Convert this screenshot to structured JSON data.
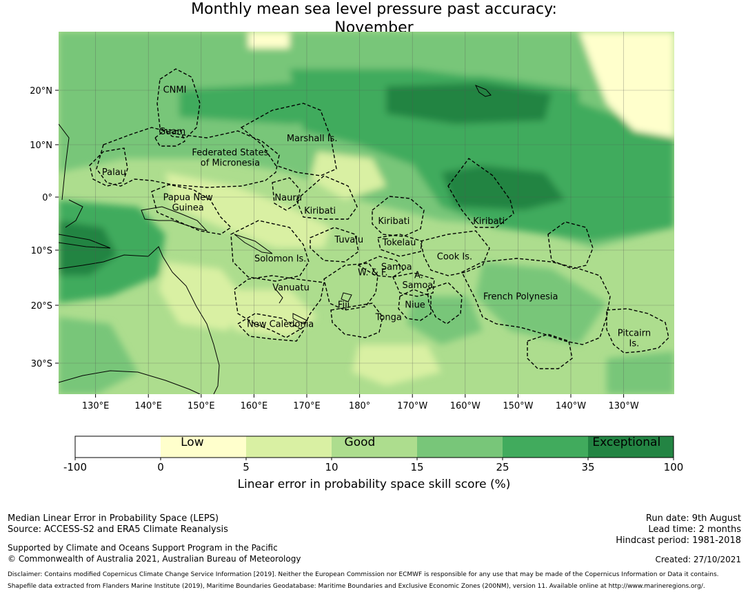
{
  "title_line1": "Monthly mean sea level pressure past accuracy:",
  "title_line2": "November",
  "map": {
    "lon_ticks": [
      "130°E",
      "140°E",
      "150°E",
      "160°E",
      "170°E",
      "180°",
      "170°W",
      "160°W",
      "150°W",
      "140°W",
      "130°W"
    ],
    "lat_ticks": [
      "20°N",
      "10°N",
      "0°",
      "10°S",
      "20°S",
      "30°S"
    ],
    "regions": [
      {
        "lines": [
          "CNMI"
        ],
        "lon": 145,
        "lat": 20.2
      },
      {
        "lines": [
          "Guam"
        ],
        "lon": 144.5,
        "lat": 12.4
      },
      {
        "lines": [
          "Marshall Is."
        ],
        "lon": 171,
        "lat": 11.1
      },
      {
        "lines": [
          "Federated States",
          "of Micronesia"
        ],
        "lon": 155.5,
        "lat": 7.5
      },
      {
        "lines": [
          "Palau"
        ],
        "lon": 133.5,
        "lat": 4.8
      },
      {
        "lines": [
          "Papua New",
          "Guinea"
        ],
        "lon": 147.5,
        "lat": -0.9
      },
      {
        "lines": [
          "Nauru"
        ],
        "lon": 166.5,
        "lat": 0
      },
      {
        "lines": [
          "Kiribati"
        ],
        "lon": 172.5,
        "lat": -2.4
      },
      {
        "lines": [
          "Kiribati"
        ],
        "lon": 186.5,
        "lat": -4.3
      },
      {
        "lines": [
          "Kiribati"
        ],
        "lon": 204.5,
        "lat": -4.3
      },
      {
        "lines": [
          "Tuvalu"
        ],
        "lon": 178,
        "lat": -7.8
      },
      {
        "lines": [
          "Tokelau"
        ],
        "lon": 187.5,
        "lat": -8.3
      },
      {
        "lines": [
          "Solomon Is."
        ],
        "lon": 165,
        "lat": -11.3
      },
      {
        "lines": [
          "Cook Is."
        ],
        "lon": 198,
        "lat": -10.9
      },
      {
        "lines": [
          "Samoa"
        ],
        "lon": 187,
        "lat": -12.8
      },
      {
        "lines": [
          "W. & F."
        ],
        "lon": 182.5,
        "lat": -13.8
      },
      {
        "lines": [
          "A."
        ],
        "lon": 191.2,
        "lat": -14.3
      },
      {
        "lines": [
          "Samoa"
        ],
        "lon": 191,
        "lat": -16.2
      },
      {
        "lines": [
          "Vanuatu"
        ],
        "lon": 167,
        "lat": -16.6
      },
      {
        "lines": [
          "French Polynesia"
        ],
        "lon": 210.5,
        "lat": -18.3
      },
      {
        "lines": [
          "Fiji"
        ],
        "lon": 177,
        "lat": -19.8
      },
      {
        "lines": [
          "Niue"
        ],
        "lon": 190.5,
        "lat": -19.8
      },
      {
        "lines": [
          "Tonga"
        ],
        "lon": 185.5,
        "lat": -22.1
      },
      {
        "lines": [
          "New Caledonia"
        ],
        "lon": 165,
        "lat": -23.4
      },
      {
        "lines": [
          "Pitcairn",
          "Is."
        ],
        "lon": 232,
        "lat": -26
      }
    ]
  },
  "colorbar": {
    "bins": [
      {
        "from": "-100",
        "to": "0",
        "color": "#ffffff"
      },
      {
        "from": "0",
        "to": "5",
        "color": "#ffffcc"
      },
      {
        "from": "5",
        "to": "10",
        "color": "#d9f0a3"
      },
      {
        "from": "10",
        "to": "15",
        "color": "#addd8e"
      },
      {
        "from": "15",
        "to": "25",
        "color": "#78c679"
      },
      {
        "from": "25",
        "to": "35",
        "color": "#41ab5d"
      },
      {
        "from": "35",
        "to": "100",
        "color": "#238443"
      }
    ],
    "boundary_labels": [
      "-100",
      "0",
      "5",
      "10",
      "15",
      "25",
      "35",
      "100"
    ],
    "category_labels": [
      "Low",
      "Good",
      "Exceptional"
    ],
    "title": "Linear error in probability space skill score (%)"
  },
  "footer": {
    "left_line1": "Median Linear Error in Probability Space (LEPS)",
    "left_line2": "Source: ACCESS-S2 and ERA5 Climate Reanalysis",
    "support_line": "Supported by Climate and Oceans Support Program in the Pacific",
    "copyright_line": "© Commonwealth of Australia 2021, Australian Bureau of Meteorology",
    "run_date": "Run date: 9th August",
    "lead_time": "Lead time: 2 months",
    "hindcast": "Hindcast period: 1981-2018",
    "created": "Created: 27/10/2021",
    "disclaimer1": "Disclaimer: Contains modified Copernicus Climate Change Service Information [2019]. Neither the European Commission nor ECMWF is responsible for any use that may be made of the Copernicus Information or Data it contains.",
    "disclaimer2": "Shapefile data extracted from Flanders Marine Institute (2019), Maritime Boundaries Geodatabase: Maritime Boundaries and Exclusive Economic Zones (200NM), version 11. Available online at http://www.marineregions.org/."
  }
}
